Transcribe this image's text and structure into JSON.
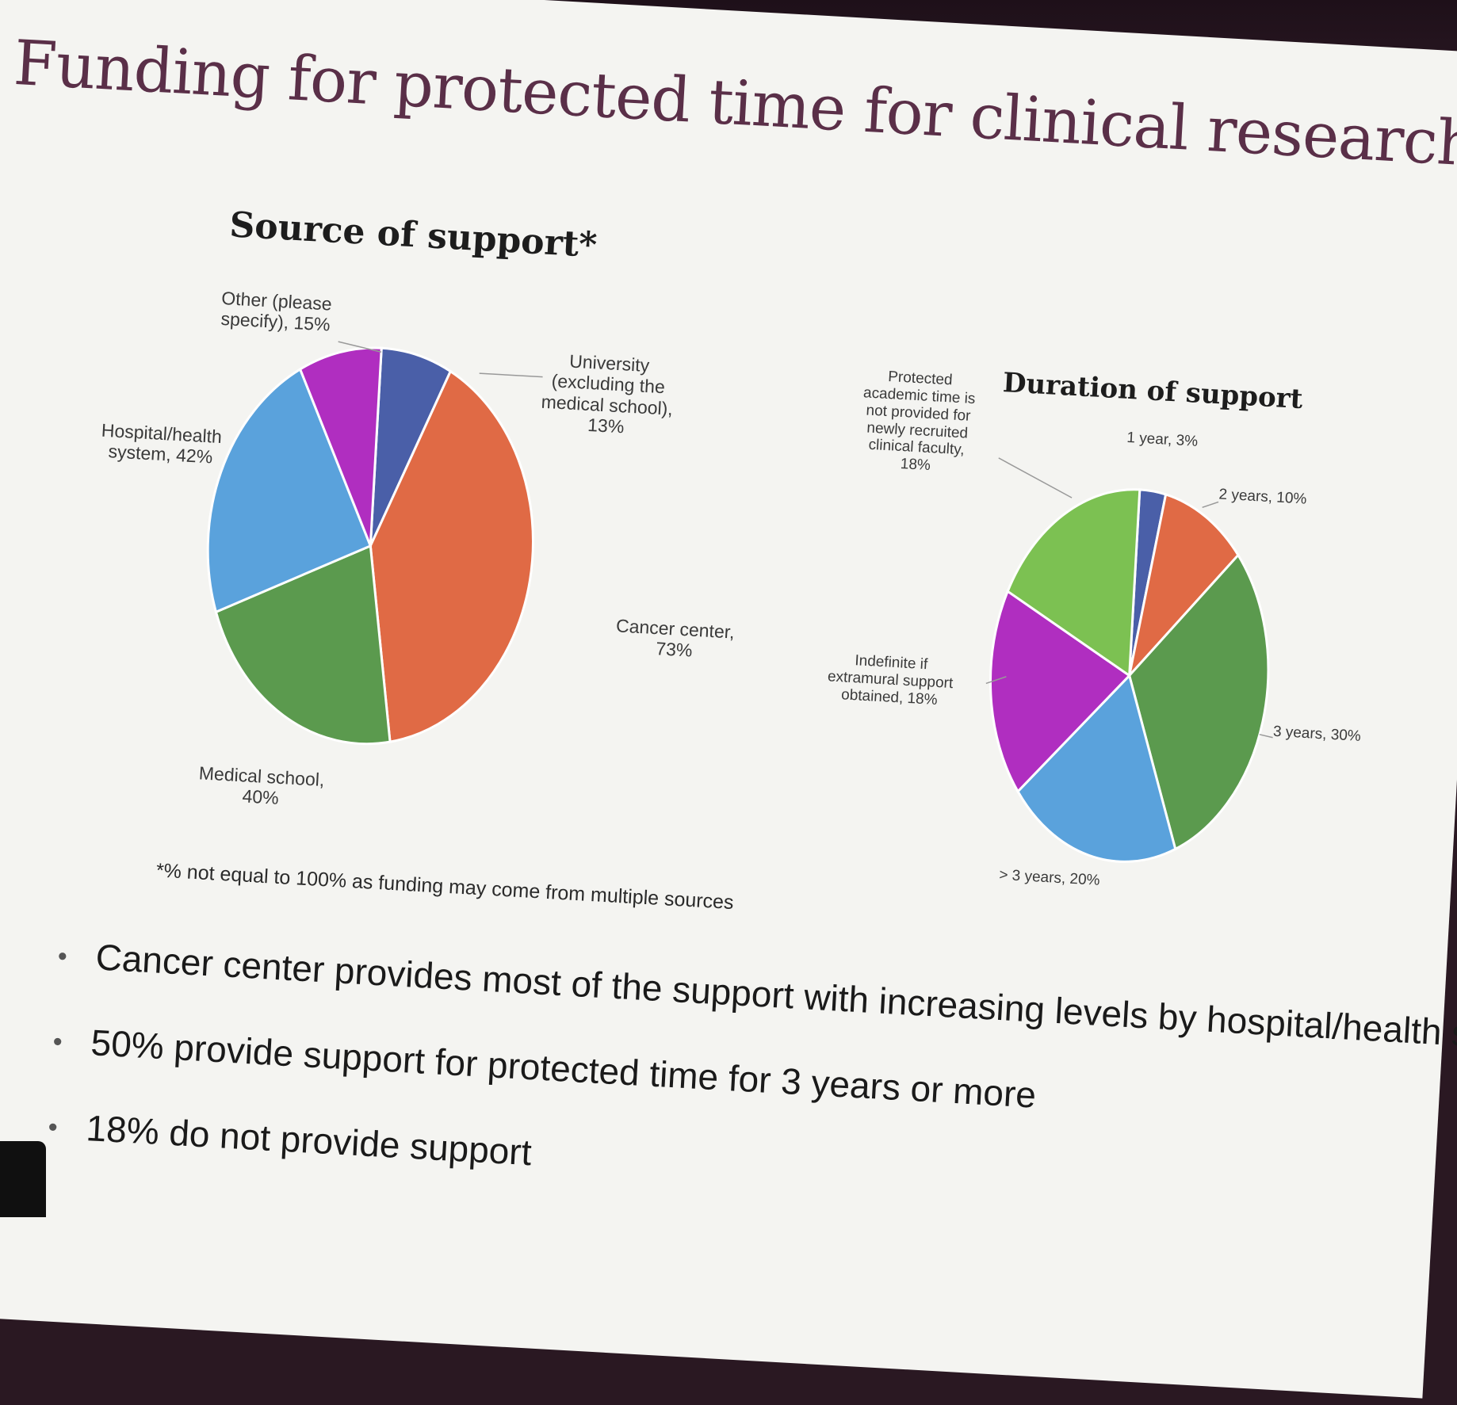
{
  "slide": {
    "title": "Funding for protected time for clinical research",
    "footnote": "*% not equal to 100% as funding may come from multiple sources",
    "bullets": [
      "Cancer center provides most of the support with increasing levels by hospital/health system",
      "50% provide support for protected time for 3 years or more",
      "18% do not provide support"
    ]
  },
  "chart_data": [
    {
      "type": "pie",
      "title": "Source of support*",
      "slices": [
        {
          "label_lines": [
            "University",
            "(excluding the",
            "medical school),",
            "13%"
          ],
          "value": 13,
          "color": "#4a5fa8"
        },
        {
          "label_lines": [
            "Cancer center,",
            "73%"
          ],
          "value": 73,
          "color": "#e06a45"
        },
        {
          "label_lines": [
            "Medical school,",
            "40%"
          ],
          "value": 40,
          "color": "#5b9a4e"
        },
        {
          "label_lines": [
            "Hospital/health",
            "system, 42%"
          ],
          "value": 42,
          "color": "#5aa2dc"
        },
        {
          "label_lines": [
            "Other (please",
            "specify), 15%"
          ],
          "value": 15,
          "color": "#b02ec0"
        }
      ]
    },
    {
      "type": "pie",
      "title": "Duration of support",
      "slices": [
        {
          "label_lines": [
            "1 year, 3%"
          ],
          "value": 3,
          "color": "#4a5fa8"
        },
        {
          "label_lines": [
            "2 years, 10%"
          ],
          "value": 10,
          "color": "#e06a45"
        },
        {
          "label_lines": [
            "3 years, 30%"
          ],
          "value": 30,
          "color": "#5b9a4e"
        },
        {
          "label_lines": [
            "> 3 years, 20%"
          ],
          "value": 20,
          "color": "#5aa2dc"
        },
        {
          "label_lines": [
            "Indefinite if",
            "extramural support",
            "obtained, 18%"
          ],
          "value": 18,
          "color": "#b02ec0"
        },
        {
          "label_lines": [
            "Protected",
            "academic time is",
            "not provided for",
            "newly recruited",
            "clinical faculty,",
            "18%"
          ],
          "value": 18,
          "color": "#7cc152"
        }
      ]
    }
  ]
}
